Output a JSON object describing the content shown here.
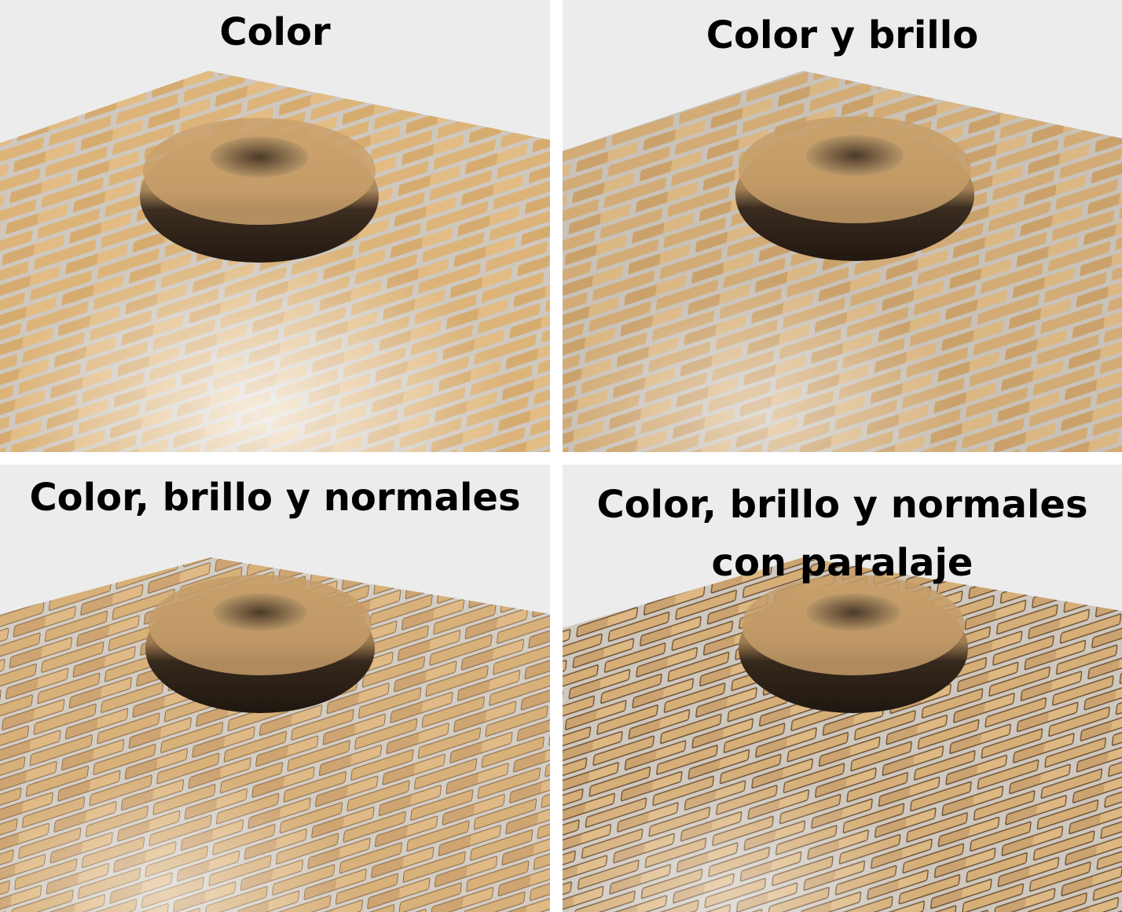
{
  "panels": [
    {
      "title_lines": [
        "Color"
      ]
    },
    {
      "title_lines": [
        "Color y brillo"
      ]
    },
    {
      "title_lines": [
        "Color, brillo y normales"
      ]
    },
    {
      "title_lines": [
        "Color, brillo y normales",
        "con paralaje"
      ]
    }
  ],
  "colors": {
    "background": "#ececec",
    "brick": "#dcb47a",
    "mortar": "#c9c2b8",
    "torus_dark": "#2e2218",
    "torus_light": "#d8b07a"
  }
}
